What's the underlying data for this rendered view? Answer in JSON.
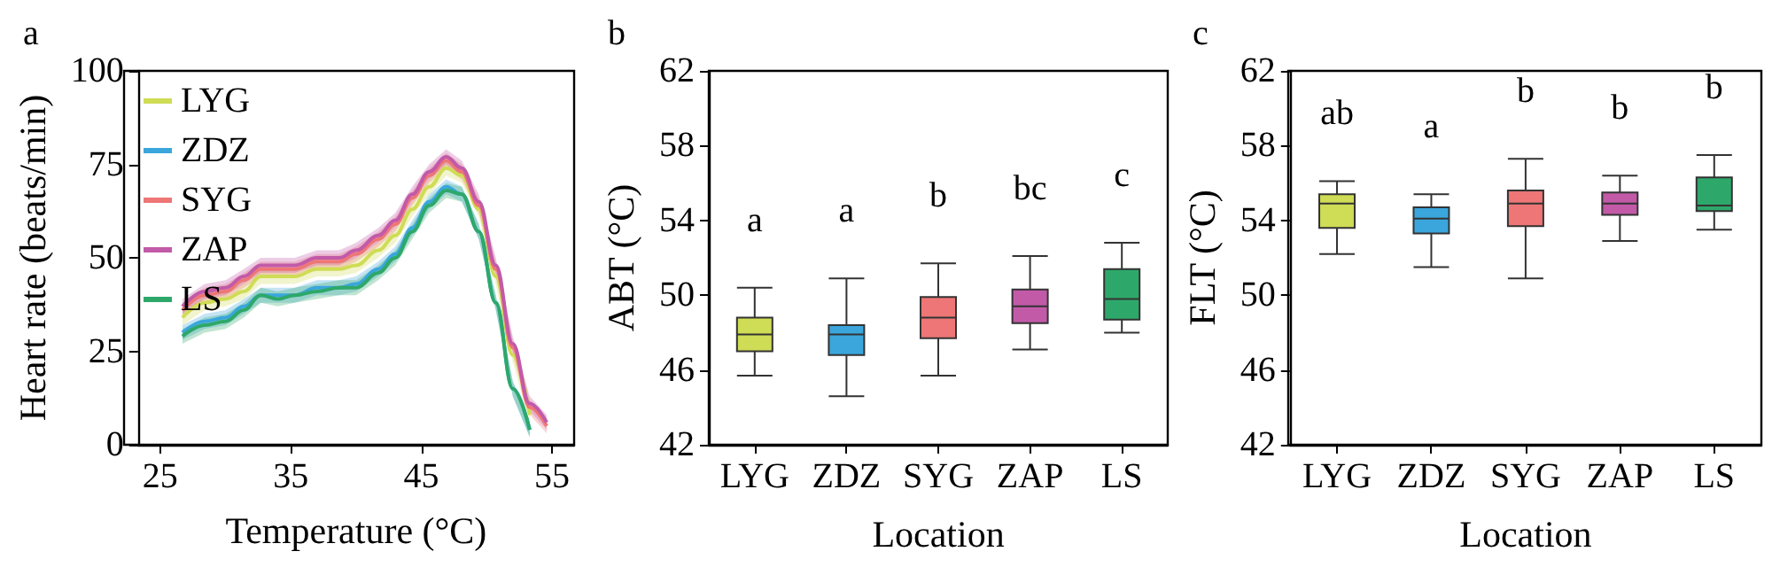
{
  "chart_data": [
    {
      "type": "line",
      "title": "a",
      "xlabel": "Temperature (°C)",
      "ylabel": "Heart rate (beats/min)",
      "legend": "top left",
      "marker": "none",
      "xlim": [
        23.3,
        56.7
      ],
      "xticks": [
        25,
        35,
        45,
        55
      ],
      "ylim": [
        0,
        100
      ],
      "yticks": [
        0,
        25,
        50,
        75,
        100
      ],
      "x": [
        26.7,
        28.4,
        30,
        31.4,
        32.7,
        34,
        35.3,
        37,
        38.7,
        40,
        41.7,
        43,
        44.3,
        45.6,
        46.9,
        48.1,
        49.4,
        50.7,
        52,
        53.3,
        54.6
      ],
      "series": [
        {
          "name": "LYG",
          "color": "#cfdc55",
          "values": [
            34,
            38,
            39,
            41,
            45,
            45,
            45,
            47,
            47,
            48,
            52,
            56,
            63,
            69,
            74,
            72,
            63,
            45,
            24,
            8,
            null
          ],
          "lower": [
            32,
            36,
            37,
            39,
            43,
            43,
            43,
            45,
            45,
            46,
            50,
            54,
            61,
            67,
            72,
            70,
            61,
            43,
            22,
            6,
            null
          ],
          "upper": [
            36,
            40,
            41,
            43,
            47,
            47,
            47,
            49,
            49,
            50,
            54,
            58,
            65,
            71,
            76,
            74,
            65,
            47,
            26,
            10,
            null
          ]
        },
        {
          "name": "ZDZ",
          "color": "#3aa6dc",
          "values": [
            30,
            33,
            34,
            37,
            40,
            40,
            40,
            42,
            42,
            43,
            47,
            51,
            58,
            65,
            69,
            67,
            57,
            38,
            15,
            4,
            null
          ],
          "lower": [
            28,
            31,
            32,
            35,
            38,
            38,
            38,
            40,
            40,
            41,
            45,
            49,
            56,
            63,
            67,
            65,
            55,
            36,
            13,
            2,
            null
          ],
          "upper": [
            32,
            35,
            36,
            39,
            42,
            42,
            42,
            44,
            44,
            45,
            49,
            53,
            60,
            67,
            71,
            69,
            59,
            40,
            17,
            6,
            null
          ]
        },
        {
          "name": "SYG",
          "color": "#ee7676",
          "values": [
            36,
            40,
            41,
            44,
            47,
            47,
            47,
            49,
            49,
            51,
            55,
            59,
            66,
            72,
            76,
            73,
            64,
            47,
            26,
            10,
            5
          ],
          "lower": [
            34,
            38,
            39,
            42,
            45,
            45,
            45,
            47,
            47,
            49,
            53,
            57,
            64,
            70,
            74,
            71,
            62,
            45,
            24,
            8,
            3
          ],
          "upper": [
            38,
            42,
            43,
            46,
            49,
            49,
            49,
            51,
            51,
            53,
            57,
            61,
            68,
            74,
            78,
            75,
            66,
            49,
            28,
            12,
            7
          ]
        },
        {
          "name": "ZAP",
          "color": "#c25aa8",
          "values": [
            37,
            41,
            42,
            45,
            48,
            48,
            48,
            50,
            50,
            52,
            56,
            60,
            67,
            73,
            77,
            74,
            65,
            48,
            27,
            11,
            6
          ],
          "lower": [
            35,
            39,
            40,
            43,
            46,
            46,
            46,
            48,
            48,
            50,
            54,
            58,
            65,
            71,
            75,
            72,
            63,
            46,
            25,
            9,
            4
          ],
          "upper": [
            39,
            43,
            44,
            47,
            50,
            50,
            50,
            52,
            52,
            54,
            58,
            62,
            69,
            75,
            79,
            76,
            67,
            50,
            29,
            13,
            8
          ]
        },
        {
          "name": "LS",
          "color": "#2ea86a",
          "values": [
            29,
            32,
            33,
            36,
            40,
            39,
            40,
            41,
            42,
            42,
            46,
            50,
            57,
            64,
            68,
            67,
            57,
            38,
            15,
            4,
            null
          ],
          "lower": [
            27,
            30,
            31,
            34,
            38,
            37,
            38,
            39,
            40,
            40,
            44,
            48,
            55,
            62,
            66,
            65,
            55,
            36,
            13,
            2,
            null
          ],
          "upper": [
            31,
            34,
            35,
            38,
            42,
            41,
            42,
            43,
            44,
            44,
            48,
            52,
            59,
            66,
            70,
            69,
            59,
            40,
            17,
            6,
            null
          ]
        }
      ]
    },
    {
      "type": "box",
      "title": "b",
      "xlabel": "Location",
      "ylabel": "ABT (°C)",
      "categories": [
        "LYG",
        "ZDZ",
        "SYG",
        "ZAP",
        "LS"
      ],
      "colors": [
        "#cfdc55",
        "#3aa6dc",
        "#ee7676",
        "#c25aa8",
        "#2ea86a"
      ],
      "ylim": [
        42,
        62
      ],
      "yticks": [
        42,
        46,
        50,
        54,
        58,
        62
      ],
      "boxes": [
        {
          "low": 45.7,
          "q1": 47.0,
          "median": 47.9,
          "q3": 48.8,
          "high": 50.4
        },
        {
          "low": 44.6,
          "q1": 46.8,
          "median": 47.9,
          "q3": 48.4,
          "high": 50.9
        },
        {
          "low": 45.7,
          "q1": 47.7,
          "median": 48.8,
          "q3": 49.9,
          "high": 51.7
        },
        {
          "low": 47.1,
          "q1": 48.5,
          "median": 49.4,
          "q3": 50.3,
          "high": 52.1
        },
        {
          "low": 48.0,
          "q1": 48.7,
          "median": 49.8,
          "q3": 51.4,
          "high": 52.8
        }
      ],
      "annotations": [
        "a",
        "a",
        "b",
        "bc",
        "c"
      ]
    },
    {
      "type": "box",
      "title": "c",
      "xlabel": "Location",
      "ylabel": "FLT (°C)",
      "categories": [
        "LYG",
        "ZDZ",
        "SYG",
        "ZAP",
        "LS"
      ],
      "colors": [
        "#cfdc55",
        "#3aa6dc",
        "#ee7676",
        "#c25aa8",
        "#2ea86a"
      ],
      "ylim": [
        42,
        62
      ],
      "yticks": [
        42,
        46,
        50,
        54,
        58,
        62
      ],
      "boxes": [
        {
          "low": 52.2,
          "q1": 53.6,
          "median": 54.9,
          "q3": 55.4,
          "high": 56.1
        },
        {
          "low": 51.5,
          "q1": 53.3,
          "median": 54.1,
          "q3": 54.7,
          "high": 55.4
        },
        {
          "low": 50.9,
          "q1": 53.7,
          "median": 54.9,
          "q3": 55.6,
          "high": 57.3
        },
        {
          "low": 52.9,
          "q1": 54.3,
          "median": 54.9,
          "q3": 55.5,
          "high": 56.4
        },
        {
          "low": 53.5,
          "q1": 54.5,
          "median": 54.8,
          "q3": 56.3,
          "high": 57.5
        }
      ],
      "annotations": [
        "ab",
        "a",
        "b",
        "b",
        "b"
      ]
    }
  ]
}
